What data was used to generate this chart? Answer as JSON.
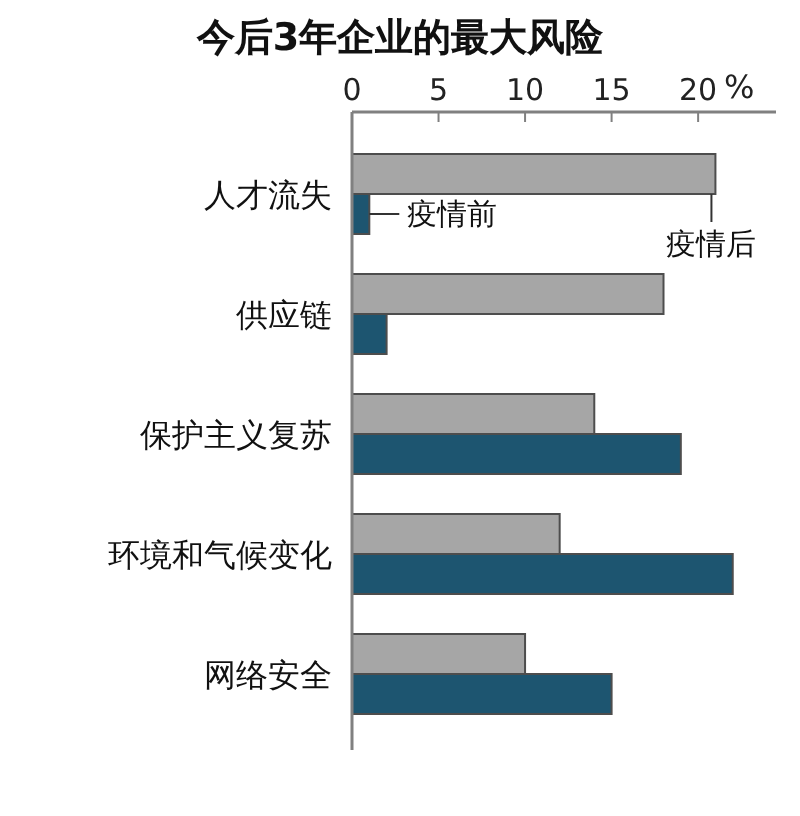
{
  "chart_data": {
    "type": "bar",
    "orientation": "horizontal",
    "title": "今后3年企业的最大风险",
    "xlabel": "%",
    "categories": [
      "人才流失",
      "供应链",
      "保护主义复苏",
      "环境和气候变化",
      "网络安全"
    ],
    "series": [
      {
        "name": "疫情后",
        "color": "#a6a6a6",
        "values": [
          21,
          18,
          14,
          12,
          10
        ]
      },
      {
        "name": "疫情前",
        "color": "#1d5570",
        "values": [
          1,
          2,
          19,
          22,
          15
        ]
      }
    ],
    "xlim": [
      0,
      24.5
    ],
    "xticks": [
      0,
      5,
      10,
      15,
      20
    ]
  }
}
